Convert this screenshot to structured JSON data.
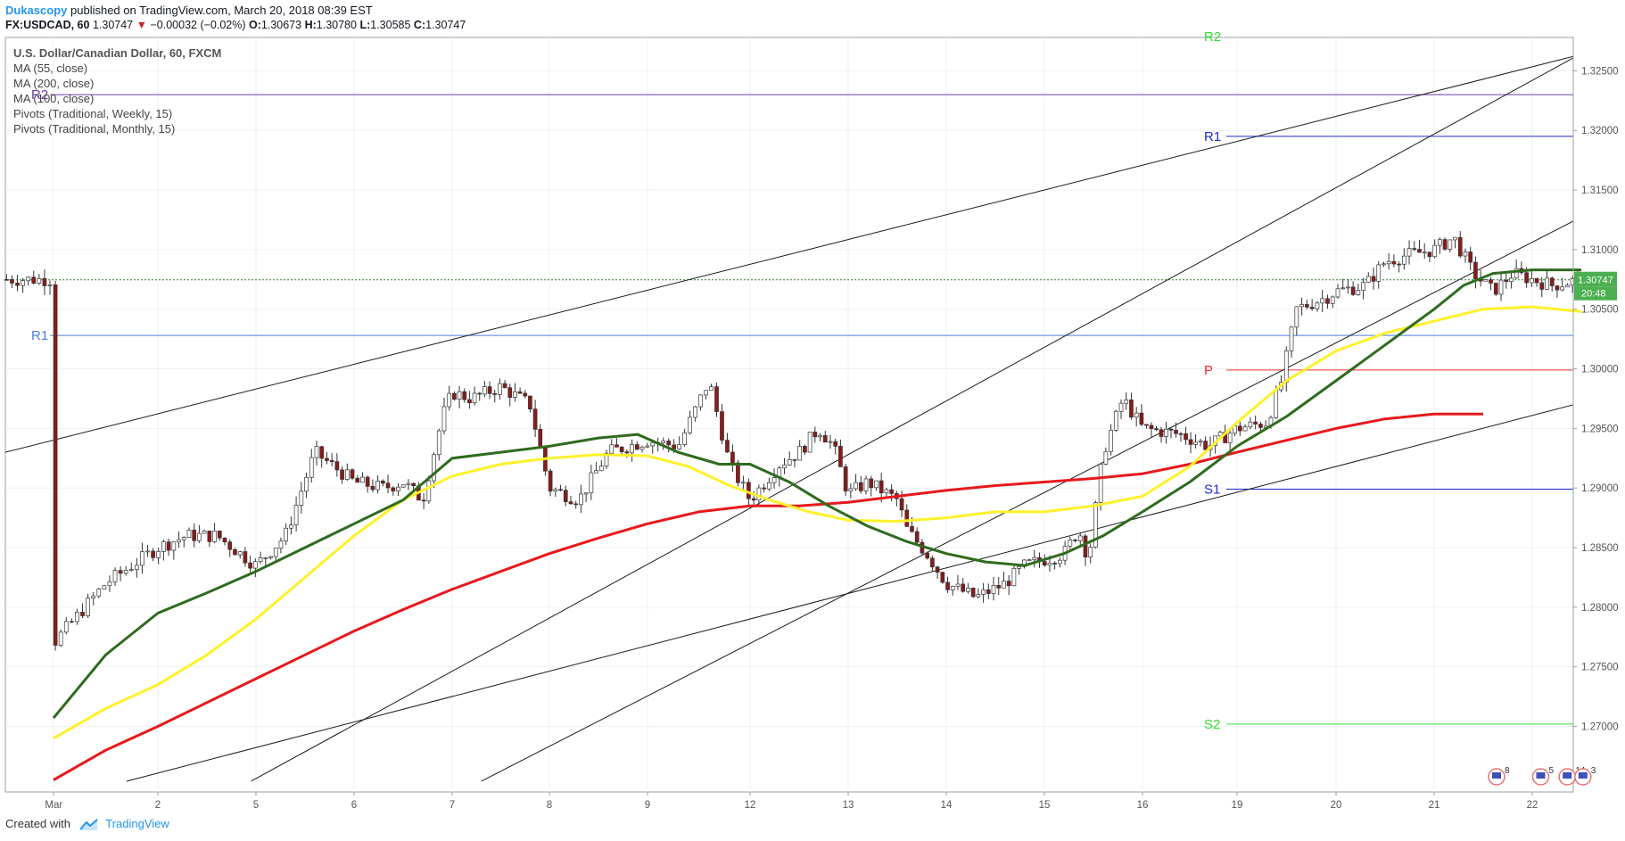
{
  "header": {
    "author": "Dukascopy",
    "published": "published on TradingView.com, March 20, 2018 08:39 EST",
    "symbol": "FX:USDCAD, 60",
    "last": "1.30747",
    "change": "−0.00032 (−0.02%)",
    "o_label": "O:",
    "o_value": "1.30673",
    "h_label": "H:",
    "h_value": "1.30780",
    "l_label": "L:",
    "l_value": "1.30585",
    "c_label": "C:",
    "c_value": "1.30747"
  },
  "legend": {
    "title": "U.S. Dollar/Canadian Dollar, 60, FXCM",
    "items": [
      "MA (55, close)",
      "MA (200, close)",
      "MA (100, close)",
      "Pivots (Traditional, Weekly, 15)",
      "Pivots (Traditional, Monthly, 15)"
    ]
  },
  "footer": {
    "created_with": "Created with",
    "brand": "TradingView"
  },
  "price_badge": {
    "value": "1.30747",
    "countdown": "20:48"
  },
  "events": {
    "e1": "8",
    "e2": "5",
    "e3": "14",
    "e4": "3"
  },
  "colors": {
    "ma55": "#2e6b1e",
    "ma100": "#fff12a",
    "ma200": "#e8181c",
    "weekly_pivot": "#1f2bd0",
    "monthly_r1": "#4a7fd9",
    "p": "#ff2a2a",
    "s2": "#33dd33",
    "candle_up": "#ffffff",
    "candle_down": "#8b1a1a"
  },
  "chart_data": {
    "type": "candlestick",
    "y_ticks": [
      "1.32500",
      "1.32000",
      "1.31500",
      "1.31000",
      "1.30500",
      "1.30000",
      "1.29500",
      "1.29000",
      "1.28500",
      "1.28000",
      "1.27500",
      "1.27000"
    ],
    "x_ticks": [
      "Mar",
      "2",
      "5",
      "6",
      "7",
      "8",
      "9",
      "12",
      "13",
      "14",
      "15",
      "16",
      "19",
      "20",
      "21",
      "22"
    ],
    "ylim": [
      1.2645,
      1.3278
    ],
    "pivots": [
      {
        "label": "R2",
        "value": 1.323,
        "color": "#6a3fa0",
        "scope": "monthly"
      },
      {
        "label": "R1",
        "value": 1.3028,
        "color": "#4a7fd9",
        "scope": "monthly"
      },
      {
        "label": "R2",
        "value": 1.3285,
        "color": "#33dd33",
        "scope": "weekly"
      },
      {
        "label": "R1",
        "value": 1.3195,
        "color": "#1f2bd0",
        "scope": "weekly"
      },
      {
        "label": "P",
        "value": 1.2999,
        "color": "#ff2a2a",
        "scope": "weekly"
      },
      {
        "label": "S1",
        "value": 1.2899,
        "color": "#1f2bd0",
        "scope": "weekly"
      },
      {
        "label": "S2",
        "value": 1.2702,
        "color": "#33dd33",
        "scope": "weekly"
      }
    ],
    "last_price": 1.30747,
    "close_path": [
      [
        0,
        1.277
      ],
      [
        0.5,
        1.282
      ],
      [
        1,
        1.285
      ],
      [
        1.3,
        1.286
      ],
      [
        1.6,
        1.286
      ],
      [
        2,
        1.2835
      ],
      [
        2.3,
        1.286
      ],
      [
        2.6,
        1.293
      ],
      [
        3,
        1.2905
      ],
      [
        3.3,
        1.29
      ],
      [
        3.5,
        1.2905
      ],
      [
        3.7,
        1.289
      ],
      [
        3.9,
        1.296
      ],
      [
        4,
        1.298
      ],
      [
        4.2,
        1.2975
      ],
      [
        4.5,
        1.2985
      ],
      [
        4.8,
        1.297
      ],
      [
        5,
        1.29
      ],
      [
        5.3,
        1.289
      ],
      [
        5.6,
        1.293
      ],
      [
        6,
        1.294
      ],
      [
        6.3,
        1.2935
      ],
      [
        6.6,
        1.299
      ],
      [
        6.8,
        1.292
      ],
      [
        7,
        1.289
      ],
      [
        7.3,
        1.292
      ],
      [
        7.5,
        1.293
      ],
      [
        7.7,
        1.295
      ],
      [
        7.85,
        1.2935
      ],
      [
        8,
        1.2895
      ],
      [
        8.2,
        1.2905
      ],
      [
        8.5,
        1.289
      ],
      [
        8.6,
        1.2865
      ],
      [
        8.8,
        1.2845
      ],
      [
        9,
        1.282
      ],
      [
        9.3,
        1.2808
      ],
      [
        9.6,
        1.282
      ],
      [
        9.8,
        1.2835
      ],
      [
        10,
        1.284
      ],
      [
        10.2,
        1.2845
      ],
      [
        10.35,
        1.2865
      ],
      [
        10.45,
        1.284
      ],
      [
        10.6,
        1.293
      ],
      [
        10.8,
        1.2975
      ],
      [
        11,
        1.295
      ],
      [
        11.4,
        1.2945
      ],
      [
        11.7,
        1.2935
      ],
      [
        12,
        1.295
      ],
      [
        12.3,
        1.2955
      ],
      [
        12.45,
        1.299
      ],
      [
        12.6,
        1.305
      ],
      [
        12.9,
        1.306
      ],
      [
        13,
        1.3065
      ],
      [
        13.3,
        1.307
      ],
      [
        13.5,
        1.309
      ],
      [
        13.7,
        1.3095
      ],
      [
        14,
        1.31
      ],
      [
        14.2,
        1.311
      ],
      [
        14.4,
        1.308
      ],
      [
        14.6,
        1.3065
      ],
      [
        14.8,
        1.308
      ],
      [
        15,
        1.3075
      ],
      [
        15.2,
        1.307
      ],
      [
        15.5,
        1.3075
      ]
    ],
    "ma55": [
      [
        0,
        1.2707
      ],
      [
        0.5,
        1.276
      ],
      [
        1,
        1.2795
      ],
      [
        1.5,
        1.2812
      ],
      [
        2,
        1.283
      ],
      [
        2.5,
        1.285
      ],
      [
        3,
        1.287
      ],
      [
        3.5,
        1.289
      ],
      [
        4,
        1.2925
      ],
      [
        4.5,
        1.293
      ],
      [
        5,
        1.2935
      ],
      [
        5.5,
        1.2942
      ],
      [
        5.9,
        1.2945
      ],
      [
        6.3,
        1.293
      ],
      [
        6.7,
        1.292
      ],
      [
        7,
        1.292
      ],
      [
        7.4,
        1.2905
      ],
      [
        7.8,
        1.2885
      ],
      [
        8.2,
        1.2868
      ],
      [
        8.6,
        1.2855
      ],
      [
        9,
        1.2845
      ],
      [
        9.4,
        1.2838
      ],
      [
        9.8,
        1.2835
      ],
      [
        10.2,
        1.2845
      ],
      [
        10.6,
        1.286
      ],
      [
        11,
        1.288
      ],
      [
        11.5,
        1.2905
      ],
      [
        12,
        1.2935
      ],
      [
        12.5,
        1.296
      ],
      [
        13,
        1.299
      ],
      [
        13.5,
        1.302
      ],
      [
        14,
        1.305
      ],
      [
        14.3,
        1.307
      ],
      [
        14.6,
        1.308
      ],
      [
        15,
        1.3083
      ],
      [
        15.5,
        1.3083
      ]
    ],
    "ma100": [
      [
        0,
        1.269
      ],
      [
        0.5,
        1.2715
      ],
      [
        1,
        1.2735
      ],
      [
        1.5,
        1.276
      ],
      [
        2,
        1.279
      ],
      [
        2.5,
        1.2825
      ],
      [
        3,
        1.286
      ],
      [
        3.5,
        1.289
      ],
      [
        4,
        1.291
      ],
      [
        4.5,
        1.292
      ],
      [
        5,
        1.2925
      ],
      [
        5.5,
        1.2928
      ],
      [
        6,
        1.2927
      ],
      [
        6.4,
        1.2918
      ],
      [
        6.8,
        1.2902
      ],
      [
        7.2,
        1.289
      ],
      [
        7.6,
        1.288
      ],
      [
        8,
        1.2873
      ],
      [
        8.5,
        1.2872
      ],
      [
        9,
        1.2875
      ],
      [
        9.5,
        1.288
      ],
      [
        10,
        1.288
      ],
      [
        10.5,
        1.2885
      ],
      [
        11,
        1.2893
      ],
      [
        11.5,
        1.2918
      ],
      [
        12,
        1.2955
      ],
      [
        12.5,
        1.299
      ],
      [
        13,
        1.3015
      ],
      [
        13.5,
        1.303
      ],
      [
        14,
        1.304
      ],
      [
        14.5,
        1.305
      ],
      [
        15,
        1.3052
      ],
      [
        15.5,
        1.3048
      ]
    ],
    "ma200": [
      [
        0,
        1.2655
      ],
      [
        0.5,
        1.268
      ],
      [
        1,
        1.27
      ],
      [
        1.5,
        1.272
      ],
      [
        2,
        1.274
      ],
      [
        2.5,
        1.276
      ],
      [
        3,
        1.278
      ],
      [
        3.5,
        1.2798
      ],
      [
        4,
        1.2815
      ],
      [
        4.5,
        1.283
      ],
      [
        5,
        1.2845
      ],
      [
        5.5,
        1.2858
      ],
      [
        6,
        1.287
      ],
      [
        6.5,
        1.288
      ],
      [
        7,
        1.2885
      ],
      [
        7.5,
        1.2885
      ],
      [
        8,
        1.2888
      ],
      [
        8.5,
        1.2893
      ],
      [
        9,
        1.2898
      ],
      [
        9.5,
        1.2902
      ],
      [
        10,
        1.2905
      ],
      [
        10.5,
        1.2908
      ],
      [
        11,
        1.2912
      ],
      [
        11.5,
        1.292
      ],
      [
        12,
        1.293
      ],
      [
        12.5,
        1.294
      ],
      [
        13,
        1.295
      ],
      [
        13.5,
        1.2958
      ],
      [
        14,
        1.2962
      ],
      [
        14.5,
        1.2962
      ]
    ],
    "trendlines": [
      [
        [
          -0.55,
          1.2928
        ],
        [
          15.8,
          1.327
        ]
      ],
      [
        [
          1.95,
          1.2654
        ],
        [
          15.8,
          1.3278
        ]
      ],
      [
        [
          4.3,
          1.2654
        ],
        [
          15.8,
          1.314
        ]
      ],
      [
        [
          0.7,
          1.2654
        ],
        [
          15.8,
          1.2978
        ]
      ]
    ],
    "title": "U.S. Dollar/Canadian Dollar, 60, FXCM"
  }
}
